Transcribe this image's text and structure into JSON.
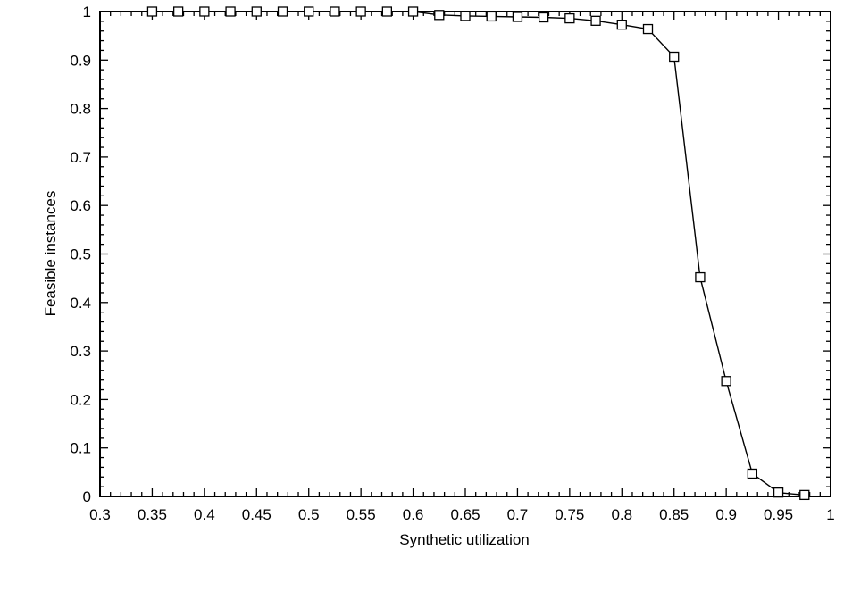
{
  "chart_data": {
    "type": "line",
    "title": "",
    "xlabel": "Synthetic utilization",
    "ylabel": "Feasible instances",
    "xlim": [
      0.3,
      1.0
    ],
    "ylim": [
      0.0,
      1.0
    ],
    "grid": false,
    "legend": "none",
    "marker": "open-square",
    "line_color": "#000000",
    "x_tick_labels": [
      "0.3",
      "0.35",
      "0.4",
      "0.45",
      "0.5",
      "0.55",
      "0.6",
      "0.65",
      "0.7",
      "0.75",
      "0.8",
      "0.85",
      "0.9",
      "0.95",
      "1"
    ],
    "x_ticks": [
      0.3,
      0.35,
      0.4,
      0.45,
      0.5,
      0.55,
      0.6,
      0.65,
      0.7,
      0.75,
      0.8,
      0.85,
      0.9,
      0.95,
      1.0
    ],
    "y_tick_labels": [
      "0",
      "0.1",
      "0.2",
      "0.3",
      "0.4",
      "0.5",
      "0.6",
      "0.7",
      "0.8",
      "0.9",
      "1"
    ],
    "y_ticks": [
      0,
      0.1,
      0.2,
      0.3,
      0.4,
      0.5,
      0.6,
      0.7,
      0.8,
      0.9,
      1.0
    ],
    "series": [
      {
        "x": [
          0.35,
          0.375,
          0.4,
          0.425,
          0.45,
          0.475,
          0.5,
          0.525,
          0.55,
          0.575,
          0.6,
          0.625,
          0.65,
          0.675,
          0.7,
          0.725,
          0.75,
          0.775,
          0.8,
          0.825,
          0.85,
          0.875,
          0.9,
          0.925,
          0.95,
          0.975
        ],
        "values": [
          1.0,
          1.0,
          1.0,
          1.0,
          1.0,
          1.0,
          1.0,
          1.0,
          1.0,
          1.0,
          1.0,
          0.993,
          0.991,
          0.99,
          0.989,
          0.988,
          0.986,
          0.981,
          0.973,
          0.964,
          0.907,
          0.452,
          0.238,
          0.047,
          0.008,
          0.003
        ]
      }
    ]
  }
}
